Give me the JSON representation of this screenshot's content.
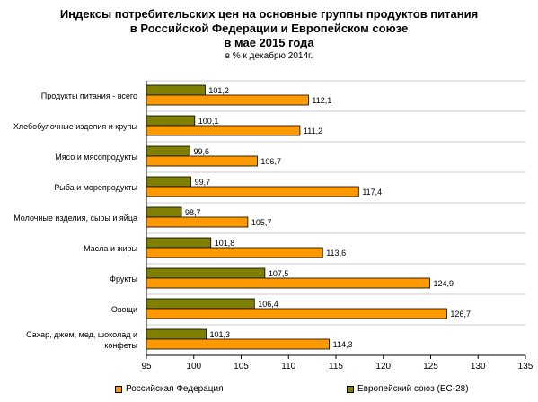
{
  "chart_data": {
    "type": "bar",
    "orientation": "horizontal",
    "title": [
      "Индексы потребительских цен на основные группы продуктов питания",
      "в Российской Федерации и Европейском союзе",
      "в мае 2015 года"
    ],
    "subtitle": "в % к декабрю 2014г.",
    "categories": [
      "Продукты питания - всего",
      "Хлебобулочные изделия и крупы",
      "Мясо и мясопродукты",
      "Рыба и морепродукты",
      "Молочные изделия, сыры и яйца",
      "Масла и жиры",
      "Фрукты",
      "Овощи",
      "Сахар, джем, мед, шоколад и конфеты"
    ],
    "series": [
      {
        "name": "Европейский союз (ЕС-28)",
        "color": "#808000",
        "values": [
          101.2,
          100.1,
          99.6,
          99.7,
          98.7,
          101.8,
          107.5,
          106.4,
          101.3
        ],
        "labels": [
          "101,2",
          "100,1",
          "99,6",
          "99,7",
          "98,7",
          "101,8",
          "107,5",
          "106,4",
          "101,3"
        ]
      },
      {
        "name": "Российская Федерация",
        "color": "#ff9900",
        "values": [
          112.1,
          111.2,
          106.7,
          117.4,
          105.7,
          113.6,
          124.9,
          126.7,
          114.3
        ],
        "labels": [
          "112,1",
          "111,2",
          "106,7",
          "117,4",
          "105,7",
          "113,6",
          "124,9",
          "126,7",
          "114,3"
        ]
      }
    ],
    "xlim": [
      95,
      135
    ],
    "xticks": [
      95,
      100,
      105,
      110,
      115,
      120,
      125,
      130,
      135
    ],
    "legend": {
      "position": "bottom",
      "items": [
        "Российская Федерация",
        "Европейский союз (ЕС-28)"
      ]
    }
  }
}
